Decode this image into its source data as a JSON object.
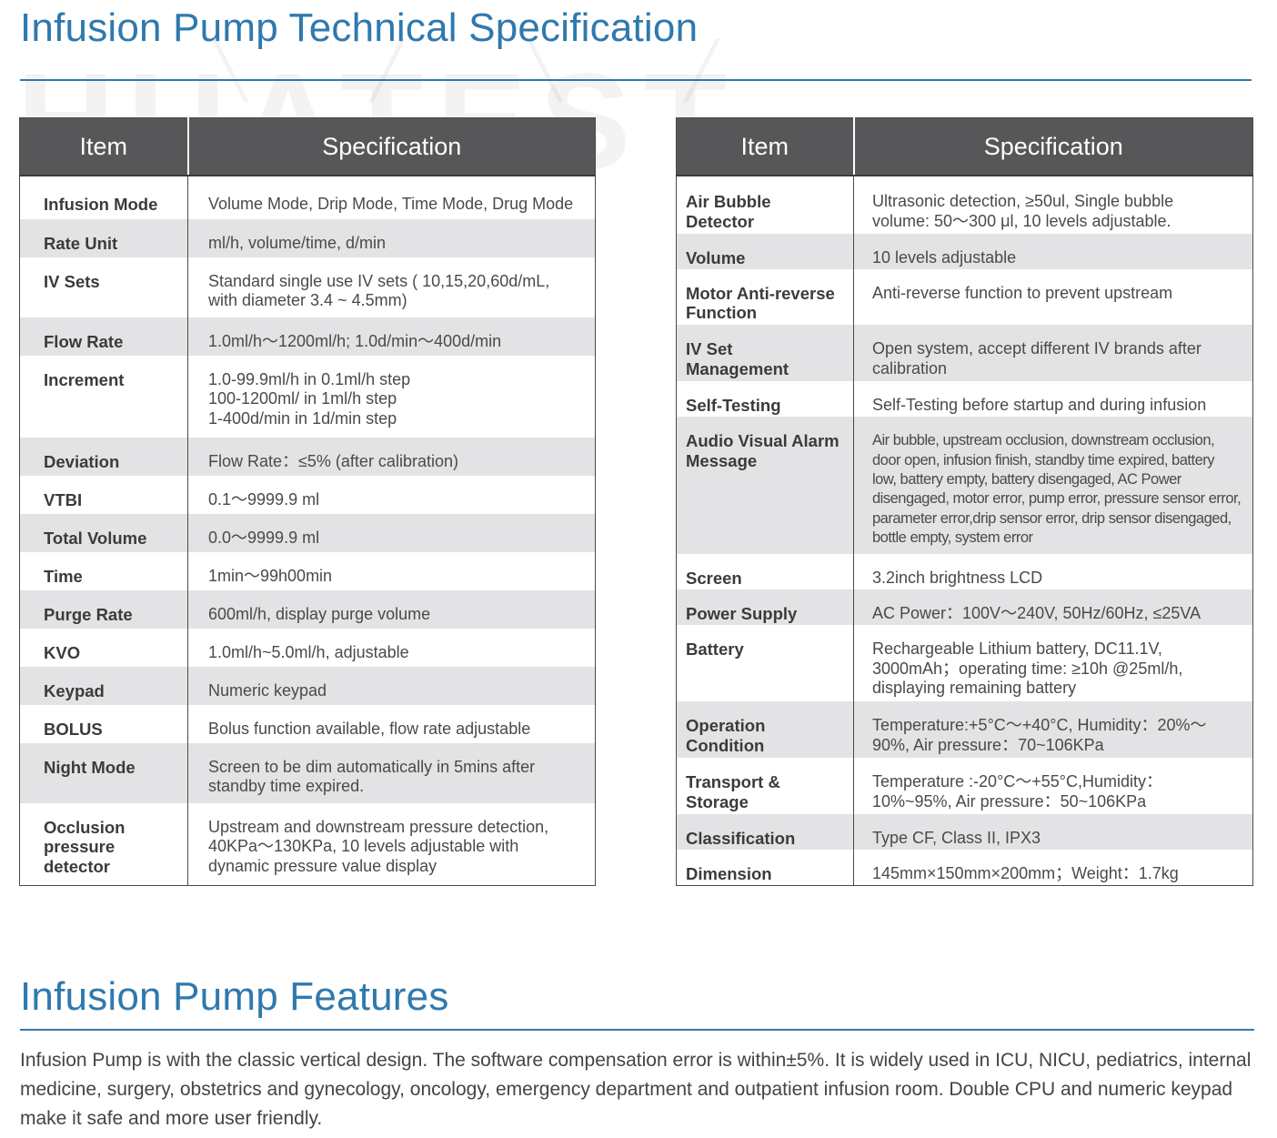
{
  "page": {
    "spec_title": "Infusion Pump Technical Specification",
    "features_title": "Infusion Pump Features",
    "watermark": "HUATEST",
    "features_text": "Infusion Pump is with the classic vertical design. The software compensation error is within±5%. It is widely used in ICU, NICU, pediatrics, internal medicine, surgery, obstetrics and gynecology, oncology, emergency department and outpatient infusion room. Double CPU and numeric keypad make it safe and more user friendly."
  },
  "table_left": {
    "headers": [
      "Item",
      "Specification"
    ],
    "rows": [
      {
        "item": [
          "Infusion Mode"
        ],
        "spec": [
          "Volume Mode, Drip Mode, Time Mode, Drug Mode"
        ]
      },
      {
        "item": [
          "Rate Unit"
        ],
        "spec": [
          "ml/h, volume/time, d/min"
        ]
      },
      {
        "item": [
          "IV Sets"
        ],
        "spec": [
          "Standard single use IV sets ( 10,15,20,60d/mL,",
          "with diameter 3.4 ~ 4.5mm)"
        ]
      },
      {
        "item": [
          "Flow Rate"
        ],
        "spec": [
          "1.0ml/h～1200ml/h; 1.0d/min～400d/min"
        ]
      },
      {
        "item": [
          "Increment"
        ],
        "spec": [
          "1.0-99.9ml/h in 0.1ml/h step",
          "100-1200ml/ in 1ml/h step",
          "1-400d/min in 1d/min step"
        ]
      },
      {
        "item": [
          "Deviation"
        ],
        "spec": [
          "Flow Rate：≤5% (after calibration)"
        ]
      },
      {
        "item": [
          "VTBI"
        ],
        "spec": [
          "0.1～9999.9 ml"
        ]
      },
      {
        "item": [
          "Total Volume"
        ],
        "spec": [
          "0.0～9999.9 ml"
        ]
      },
      {
        "item": [
          "Time"
        ],
        "spec": [
          "1min～99h00min"
        ]
      },
      {
        "item": [
          "Purge Rate"
        ],
        "spec": [
          "600ml/h, display purge volume"
        ]
      },
      {
        "item": [
          "KVO"
        ],
        "spec": [
          "1.0ml/h~5.0ml/h, adjustable"
        ]
      },
      {
        "item": [
          "Keypad"
        ],
        "spec": [
          "Numeric keypad"
        ]
      },
      {
        "item": [
          "BOLUS"
        ],
        "spec": [
          "Bolus function available, flow rate adjustable"
        ]
      },
      {
        "item": [
          "Night Mode"
        ],
        "spec": [
          "Screen to be dim automatically in 5mins after",
          "standby time expired."
        ]
      },
      {
        "item": [
          "Occlusion",
          "pressure",
          "detector"
        ],
        "spec": [
          "Upstream and downstream pressure detection,",
          "40KPa～130KPa, 10 levels adjustable with",
          "dynamic pressure value display"
        ]
      }
    ]
  },
  "table_right": {
    "headers": [
      "Item",
      "Specification"
    ],
    "rows": [
      {
        "item": [
          "Air Bubble",
          "Detector"
        ],
        "spec": [
          "Ultrasonic detection, ≥50ul, Single bubble",
          "volume: 50～300 μl, 10 levels adjustable."
        ]
      },
      {
        "item": [
          "Volume"
        ],
        "spec": [
          "10 levels adjustable"
        ]
      },
      {
        "item": [
          "Motor Anti-reverse",
          "Function"
        ],
        "spec": [
          "Anti-reverse function to prevent upstream"
        ]
      },
      {
        "item": [
          "IV Set",
          "Management"
        ],
        "spec": [
          "Open system, accept different IV brands after",
          "calibration"
        ]
      },
      {
        "item": [
          "Self-Testing"
        ],
        "spec": [
          "Self-Testing before startup and during infusion"
        ]
      },
      {
        "item": [
          "Audio Visual Alarm",
          "Message"
        ],
        "spec": [
          "Air bubble, upstream occlusion, downstream occlusion,",
          "door open, infusion finish, standby time expired, battery",
          "low, battery empty, battery disengaged, AC Power",
          "disengaged, motor error, pump error, pressure sensor error,",
          "parameter error,drip sensor error, drip sensor disengaged,",
          "bottle empty, system error"
        ],
        "condensed": true
      },
      {
        "item": [
          "Screen"
        ],
        "spec": [
          "3.2inch brightness LCD"
        ]
      },
      {
        "item": [
          "Power Supply"
        ],
        "spec": [
          "AC Power：100V～240V, 50Hz/60Hz, ≤25VA"
        ]
      },
      {
        "item": [
          "Battery"
        ],
        "spec": [
          "Rechargeable Lithium battery, DC11.1V,",
          "3000mAh；operating time: ≥10h @25ml/h,",
          "displaying remaining battery"
        ]
      },
      {
        "item": [
          "Operation",
          "Condition"
        ],
        "spec": [
          "Temperature:+5°C～+40°C, Humidity：20%～",
          "90%, Air pressure：70~106KPa"
        ]
      },
      {
        "item": [
          "Transport &",
          "Storage"
        ],
        "spec": [
          "Temperature :-20°C～+55°C,Humidity：",
          "10%~95%, Air pressure：50~106KPa"
        ]
      },
      {
        "item": [
          "Classification"
        ],
        "spec": [
          "Type CF, Class II, IPX3"
        ]
      },
      {
        "item": [
          "Dimension"
        ],
        "spec": [
          "145mm×150mm×200mm；Weight：1.7kg"
        ]
      }
    ]
  }
}
